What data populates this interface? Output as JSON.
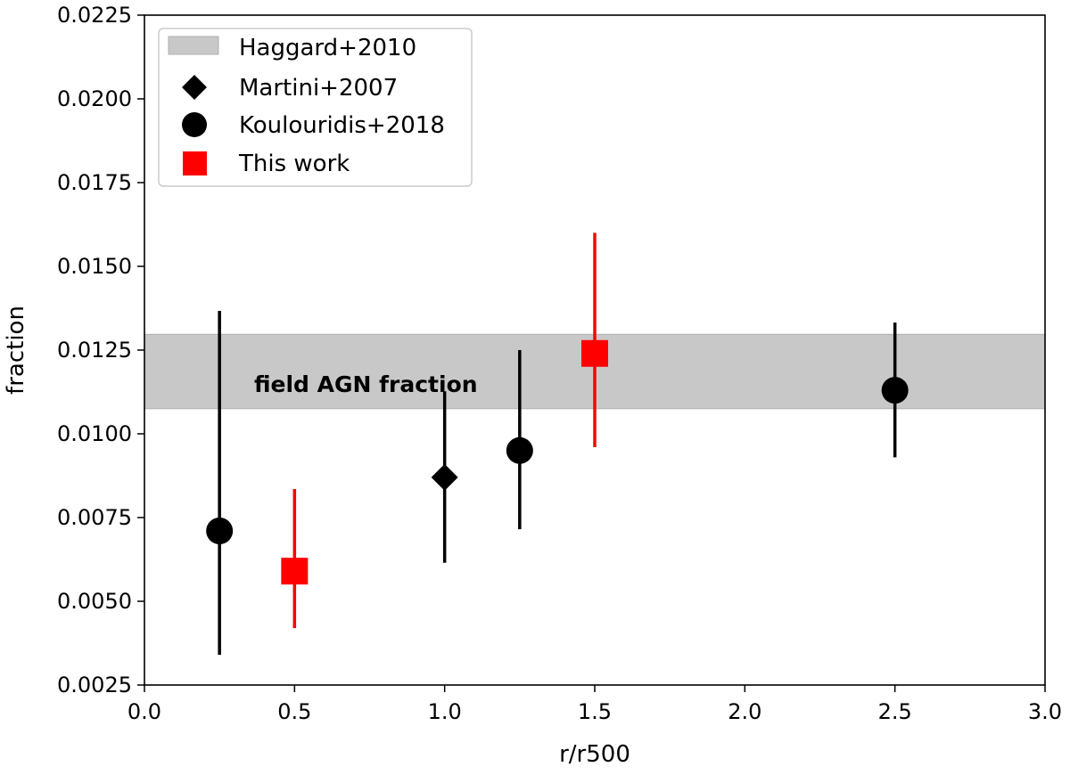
{
  "chart_data": {
    "type": "scatter",
    "xlabel": "r/r500",
    "ylabel": "fraction",
    "xlim": [
      0.0,
      3.0
    ],
    "ylim": [
      0.0025,
      0.0225
    ],
    "xticks": [
      "0.0",
      "0.5",
      "1.0",
      "1.5",
      "2.0",
      "2.5",
      "3.0"
    ],
    "yticks": [
      "0.0025",
      "0.0050",
      "0.0075",
      "0.0100",
      "0.0125",
      "0.0150",
      "0.0175",
      "0.0200",
      "0.0225"
    ],
    "grid": false,
    "legend_position": "top-left",
    "band": {
      "name": "Haggard+2010",
      "y_low": 0.01075,
      "y_high": 0.01297,
      "color": "#c8c8c8",
      "annotation": "field AGN fraction"
    },
    "series": [
      {
        "name": "Martini+2007",
        "marker": "diamond",
        "color": "#000000",
        "points": [
          {
            "x": 1.0,
            "y": 0.0087,
            "err_low": 0.00615,
            "err_high": 0.01127
          }
        ]
      },
      {
        "name": "Koulouridis+2018",
        "marker": "circle",
        "color": "#000000",
        "points": [
          {
            "x": 0.25,
            "y": 0.0071,
            "err_low": 0.0034,
            "err_high": 0.01367
          },
          {
            "x": 1.25,
            "y": 0.0095,
            "err_low": 0.00715,
            "err_high": 0.0125
          },
          {
            "x": 2.5,
            "y": 0.0113,
            "err_low": 0.0093,
            "err_high": 0.01332
          }
        ]
      },
      {
        "name": "This work",
        "marker": "square",
        "color": "#ff0000",
        "points": [
          {
            "x": 0.5,
            "y": 0.0059,
            "err_low": 0.0042,
            "err_high": 0.00835
          },
          {
            "x": 1.5,
            "y": 0.0124,
            "err_low": 0.0096,
            "err_high": 0.016
          }
        ]
      }
    ]
  }
}
